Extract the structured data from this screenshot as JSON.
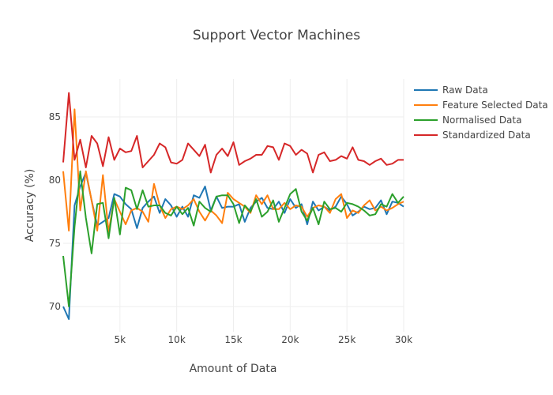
{
  "chart_data": {
    "type": "line",
    "title": "Support Vector Machines",
    "xlabel": "Amount of Data",
    "ylabel": "Accuracy (%)",
    "xlim": [
      0,
      30000
    ],
    "ylim": [
      68,
      88
    ],
    "grid": true,
    "legend_placement": "top-right",
    "x_ticks": [
      5000,
      10000,
      15000,
      20000,
      25000,
      30000
    ],
    "x_tick_labels": [
      "5k",
      "10k",
      "15k",
      "20k",
      "25k",
      "30k"
    ],
    "y_ticks": [
      70,
      75,
      80,
      85
    ],
    "y_tick_labels": [
      "70",
      "75",
      "80",
      "85"
    ],
    "x": [
      0,
      500,
      1000,
      1500,
      2000,
      2500,
      3000,
      3500,
      4000,
      4500,
      5000,
      5500,
      6000,
      6500,
      7000,
      7500,
      8000,
      8500,
      9000,
      9500,
      10000,
      10500,
      11000,
      11500,
      12000,
      12500,
      13000,
      13500,
      14000,
      14500,
      15000,
      15500,
      16000,
      16500,
      17000,
      17500,
      18000,
      18500,
      19000,
      19500,
      20000,
      20500,
      21000,
      21500,
      22000,
      22500,
      23000,
      23500,
      24000,
      24500,
      25000,
      25500,
      26000,
      26500,
      27000,
      27500,
      28000,
      28500,
      29000,
      29500,
      30000
    ],
    "series": [
      {
        "name": "Raw Data",
        "color": "#1f77b4",
        "values": [
          70.0,
          69.0,
          78.0,
          79.5,
          80.6,
          78.4,
          76.4,
          76.7,
          77.0,
          78.9,
          78.7,
          78.1,
          77.7,
          76.2,
          77.8,
          78.3,
          78.7,
          77.4,
          78.5,
          78.0,
          77.1,
          77.9,
          77.1,
          78.8,
          78.6,
          79.5,
          77.6,
          78.7,
          77.8,
          77.9,
          77.9,
          78.1,
          76.7,
          77.8,
          78.3,
          78.6,
          77.8,
          77.7,
          78.3,
          77.4,
          78.5,
          77.8,
          78.1,
          76.5,
          78.3,
          77.6,
          77.9,
          77.6,
          77.9,
          78.7,
          78.1,
          77.2,
          77.5,
          77.9,
          77.7,
          77.8,
          78.4,
          77.3,
          78.3,
          78.2,
          77.9
        ]
      },
      {
        "name": "Feature Selected Data",
        "color": "#ff7f0e",
        "values": [
          80.7,
          76.0,
          85.6,
          77.6,
          80.7,
          78.4,
          76.0,
          80.4,
          75.9,
          78.5,
          77.5,
          76.5,
          77.6,
          77.8,
          77.5,
          76.7,
          79.7,
          78.0,
          77.0,
          77.7,
          77.9,
          77.7,
          78.0,
          78.5,
          77.5,
          76.8,
          77.6,
          77.2,
          76.6,
          79.0,
          78.5,
          78.2,
          77.9,
          77.4,
          78.8,
          78.1,
          78.8,
          77.7,
          77.7,
          78.2,
          77.7,
          78.0,
          77.9,
          77.1,
          77.8,
          78.0,
          77.9,
          77.4,
          78.5,
          78.9,
          77.0,
          77.6,
          77.4,
          78.0,
          78.4,
          77.6,
          77.9,
          77.6,
          77.8,
          78.1,
          78.3
        ]
      },
      {
        "name": "Normalised Data",
        "color": "#2ca02c",
        "values": [
          74.0,
          70.0,
          76.3,
          80.7,
          77.0,
          74.2,
          78.1,
          78.2,
          75.4,
          78.6,
          75.7,
          79.4,
          79.2,
          77.7,
          79.2,
          77.9,
          78.0,
          78.0,
          77.4,
          77.2,
          77.9,
          77.3,
          77.8,
          76.4,
          78.3,
          77.8,
          77.5,
          78.7,
          78.8,
          78.8,
          78.1,
          76.6,
          78.0,
          77.5,
          78.5,
          77.1,
          77.5,
          78.4,
          76.7,
          77.8,
          78.9,
          79.3,
          77.5,
          76.8,
          77.8,
          76.5,
          78.3,
          77.7,
          77.8,
          77.5,
          78.2,
          78.1,
          77.9,
          77.6,
          77.2,
          77.3,
          78.1,
          77.9,
          78.9,
          78.2,
          78.7
        ]
      },
      {
        "name": "Standardized Data",
        "color": "#d62728",
        "values": [
          81.4,
          86.9,
          81.6,
          83.2,
          81.0,
          83.5,
          82.9,
          81.1,
          83.4,
          81.6,
          82.5,
          82.2,
          82.3,
          83.5,
          81.0,
          81.5,
          82.0,
          82.9,
          82.6,
          81.4,
          81.3,
          81.6,
          82.9,
          82.4,
          81.9,
          82.8,
          80.6,
          82.0,
          82.5,
          81.9,
          83.0,
          81.2,
          81.5,
          81.7,
          82.0,
          82.0,
          82.7,
          82.6,
          81.6,
          82.9,
          82.7,
          82.0,
          82.4,
          82.1,
          80.6,
          82.0,
          82.2,
          81.5,
          81.6,
          81.9,
          81.7,
          82.6,
          81.6,
          81.5,
          81.2,
          81.5,
          81.7,
          81.2,
          81.3,
          81.6,
          81.6
        ]
      }
    ]
  }
}
